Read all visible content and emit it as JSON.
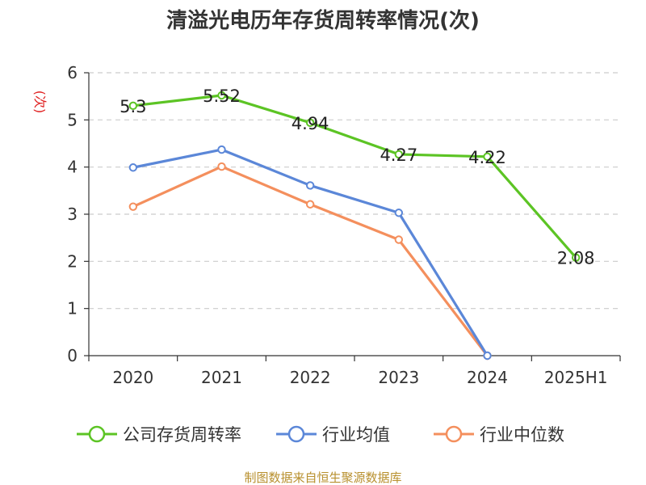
{
  "chart_data": {
    "type": "line",
    "title": "清溢光电历年存货周转率情况(次)",
    "ylabel": "(次)",
    "xlabel": "",
    "categories": [
      "2020",
      "2021",
      "2022",
      "2023",
      "2024",
      "2025H1"
    ],
    "ylim": [
      0,
      6
    ],
    "yticks": [
      "0",
      "1",
      "2",
      "3",
      "4",
      "5",
      "6"
    ],
    "grid": true,
    "legend_position": "bottom",
    "series": [
      {
        "name": "公司存货周转率",
        "color": "#5cc424",
        "values": [
          5.3,
          5.52,
          4.94,
          4.27,
          4.22,
          2.08
        ],
        "labels": [
          "5.3",
          "5.52",
          "4.94",
          "4.27",
          "4.22",
          "2.08"
        ]
      },
      {
        "name": "行业均值",
        "color": "#5b87d8",
        "values": [
          3.99,
          4.37,
          3.61,
          3.03,
          0.0,
          null
        ]
      },
      {
        "name": "行业中位数",
        "color": "#f48f5d",
        "values": [
          3.16,
          4.01,
          3.21,
          2.46,
          0.0,
          null
        ]
      }
    ]
  },
  "source": "制图数据来自恒生聚源数据库"
}
